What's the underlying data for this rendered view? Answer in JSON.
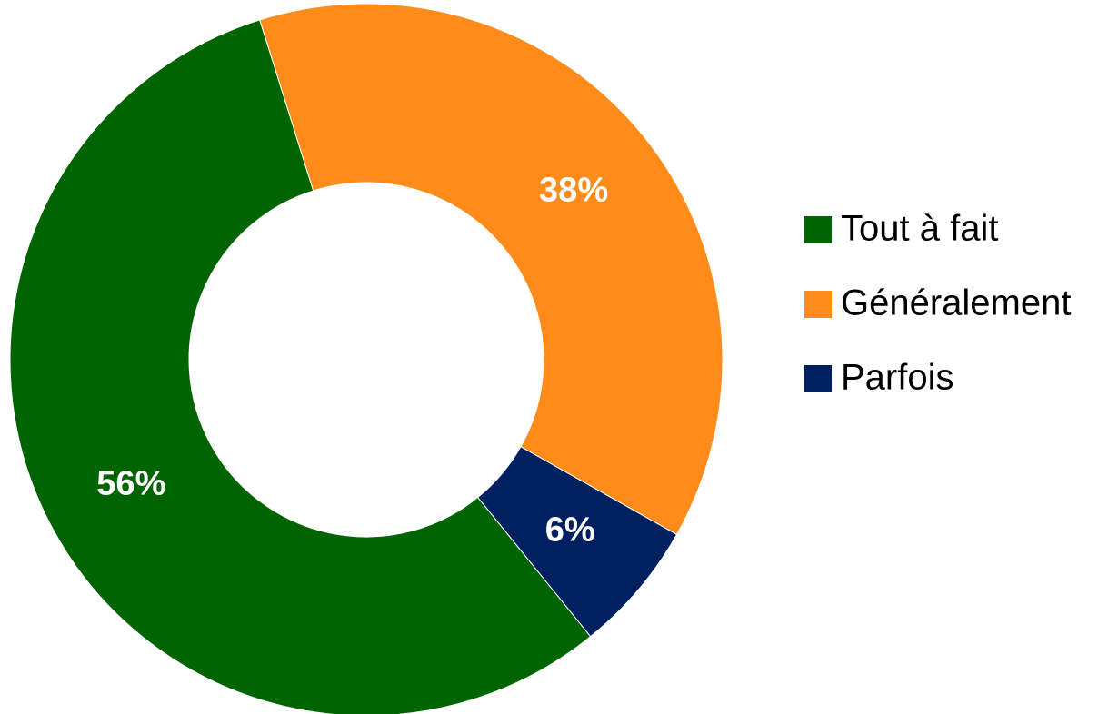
{
  "chart_data": {
    "type": "donut",
    "categories": [
      "Tout à fait",
      "Généralement",
      "Parfois"
    ],
    "values": [
      56,
      38,
      6
    ],
    "value_labels": [
      "56%",
      "38%",
      "6%"
    ],
    "colors": [
      "#006400",
      "#ff8c1a",
      "#002060"
    ],
    "legend": "right"
  }
}
